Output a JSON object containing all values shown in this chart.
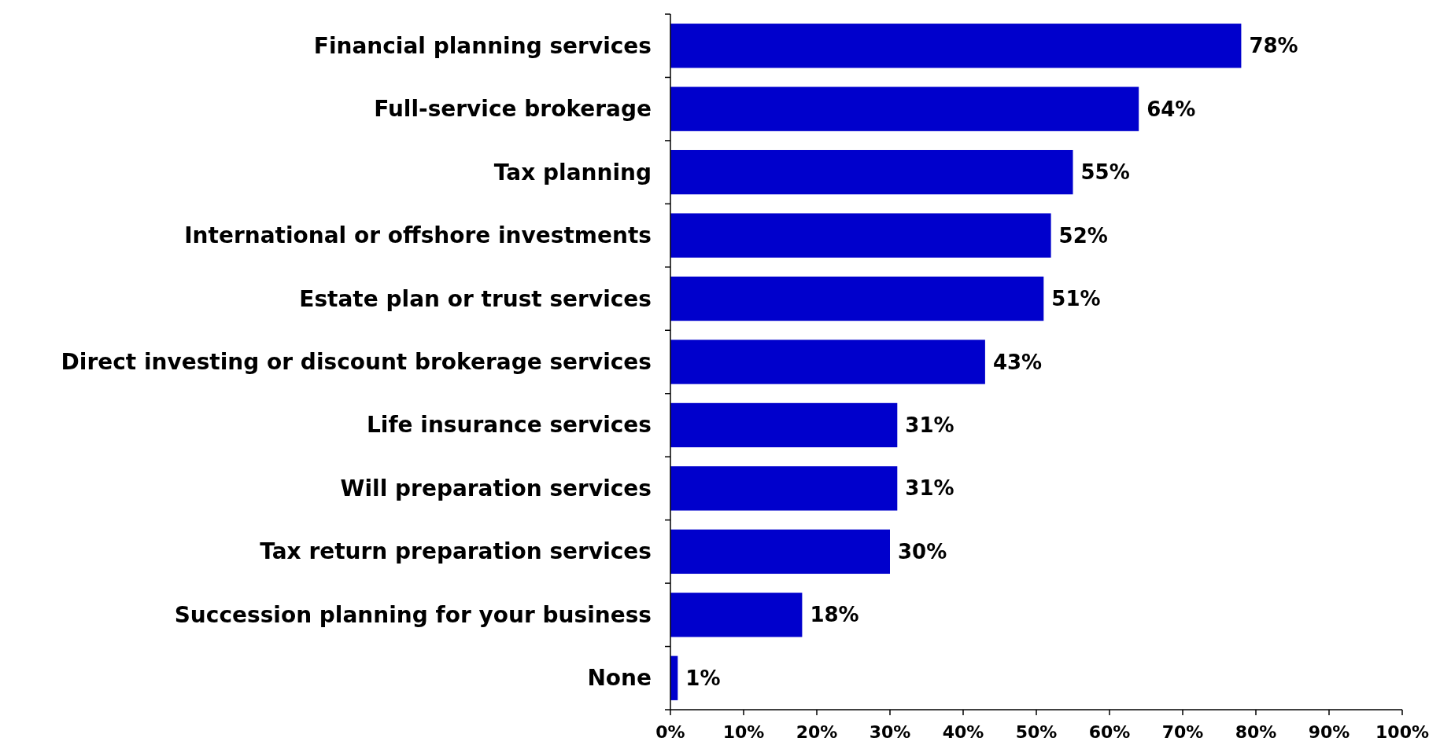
{
  "chart_data": {
    "type": "bar",
    "orientation": "horizontal",
    "categories": [
      "Financial planning services",
      "Full-service brokerage",
      "Tax planning",
      "International or offshore investments",
      "Estate plan or trust services",
      "Direct investing or discount brokerage services",
      "Life insurance services",
      "Will preparation services",
      "Tax return preparation services",
      "Succession planning for your business",
      "None"
    ],
    "values": [
      78,
      64,
      55,
      52,
      51,
      43,
      31,
      31,
      30,
      18,
      1
    ],
    "value_labels": [
      "78%",
      "64%",
      "55%",
      "52%",
      "51%",
      "43%",
      "31%",
      "31%",
      "30%",
      "18%",
      "1%"
    ],
    "color": "#0000cc",
    "xlim": [
      0,
      100
    ],
    "xticks": [
      {
        "value": 0,
        "label": "0%"
      },
      {
        "value": 10,
        "label": "10%"
      },
      {
        "value": 20,
        "label": "20%"
      },
      {
        "value": 30,
        "label": "30%"
      },
      {
        "value": 40,
        "label": "40%"
      },
      {
        "value": 50,
        "label": "50%"
      },
      {
        "value": 60,
        "label": "60%"
      },
      {
        "value": 70,
        "label": "70%"
      },
      {
        "value": 80,
        "label": "80%"
      },
      {
        "value": 90,
        "label": "90%"
      },
      {
        "value": 100,
        "label": "100%"
      }
    ],
    "grid": false
  }
}
